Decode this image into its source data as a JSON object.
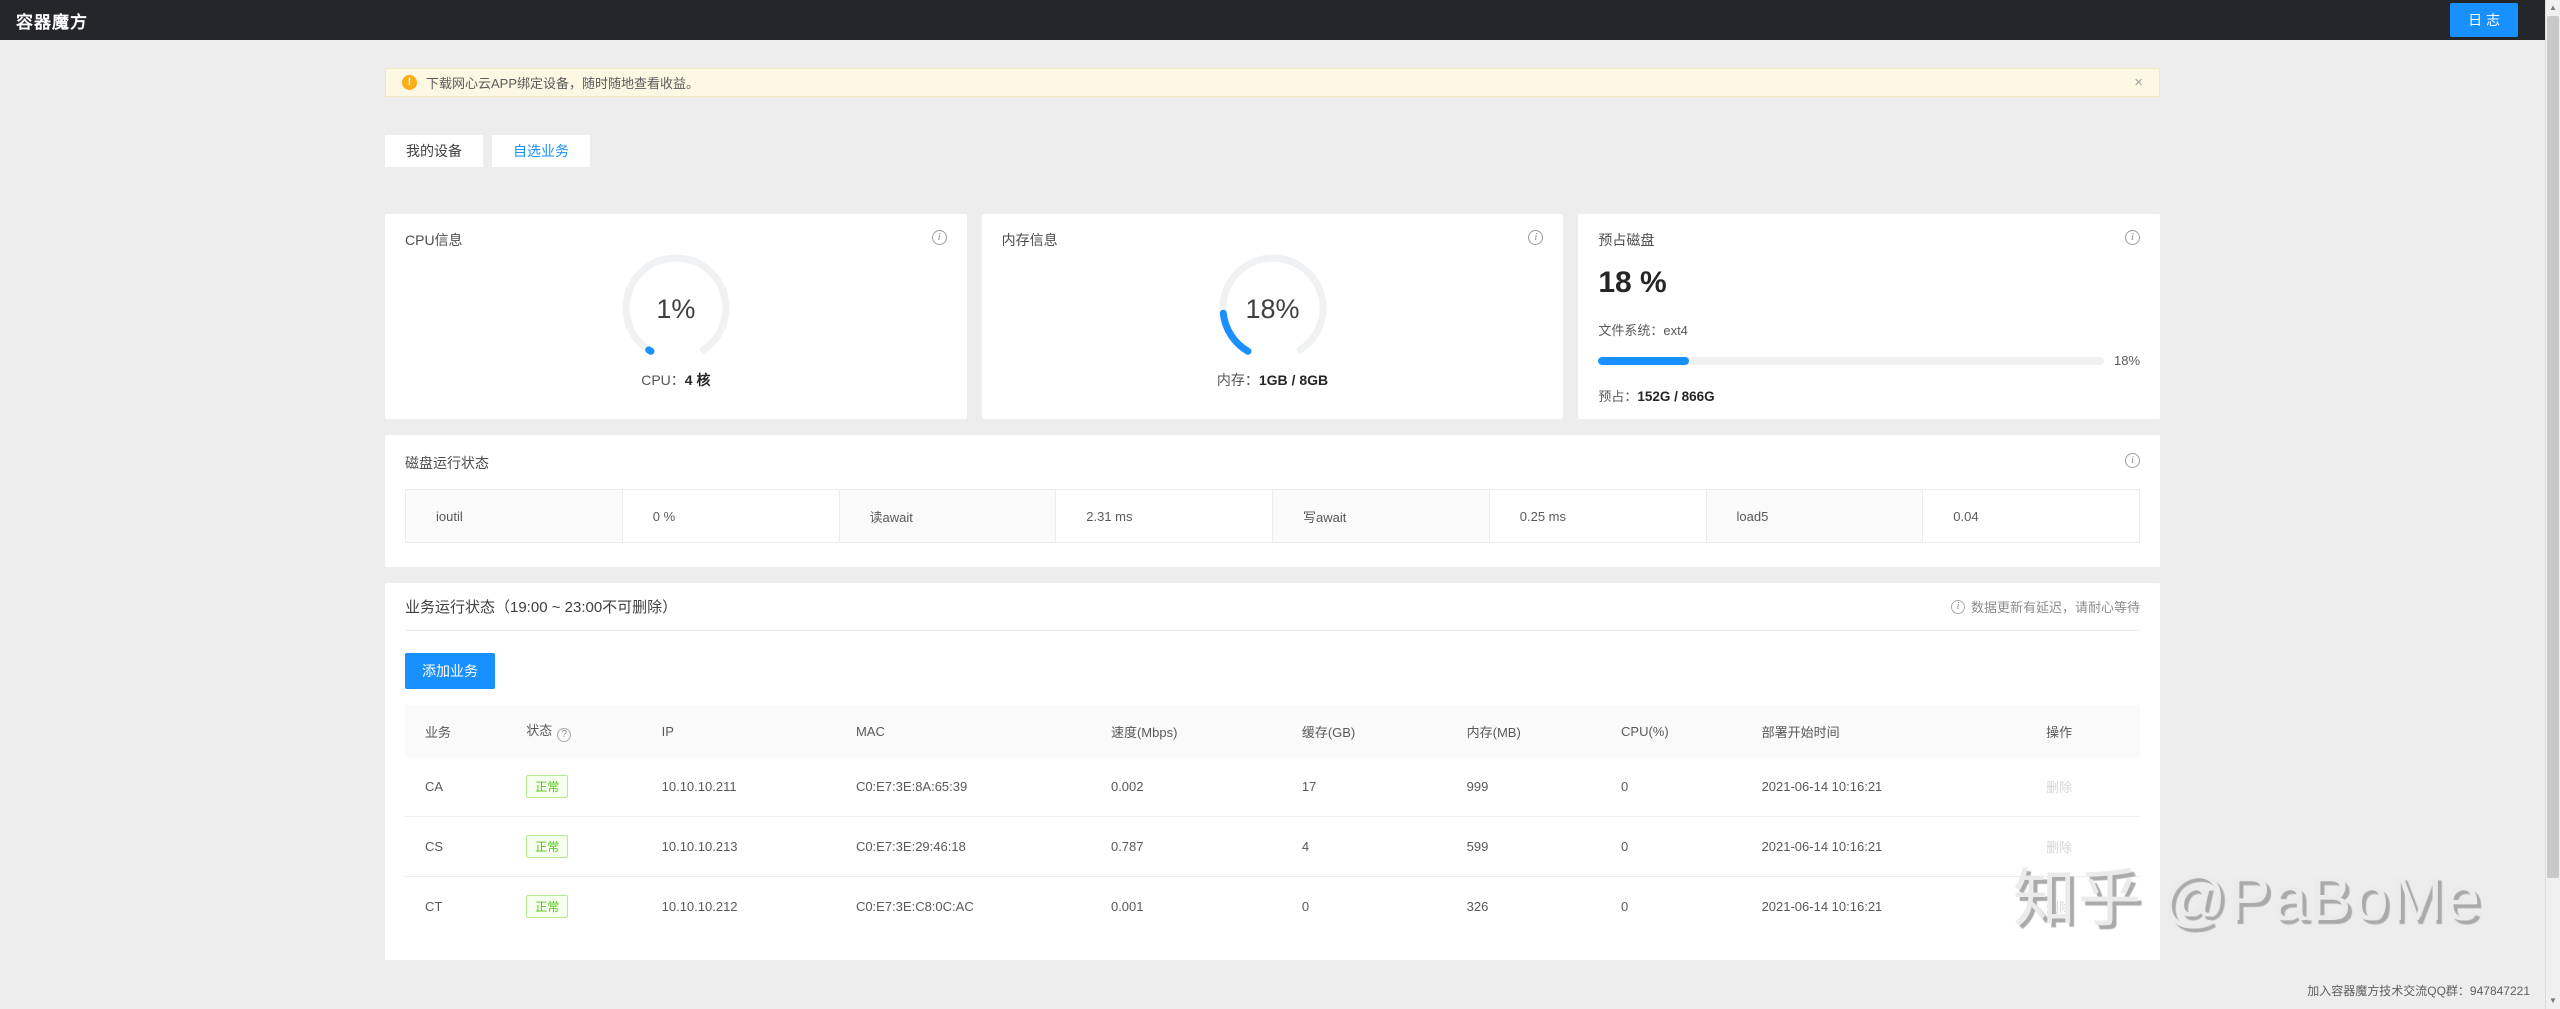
{
  "header": {
    "title": "容器魔方",
    "log_button": "日 志"
  },
  "icons": {
    "warning": "!",
    "close": "×",
    "info": "i",
    "help": "?",
    "scroll_up": "▲",
    "scroll_down": "▼"
  },
  "banner": {
    "text": "下载网心云APP绑定设备，随时随地查看收益。"
  },
  "tabs": [
    {
      "label": "我的设备",
      "active": false
    },
    {
      "label": "自选业务",
      "active": true
    }
  ],
  "cards": {
    "cpu": {
      "title": "CPU信息",
      "percent": "1%",
      "value": 1,
      "label_prefix": "CPU：",
      "label_value": "4 核"
    },
    "memory": {
      "title": "内存信息",
      "percent": "18%",
      "value": 18,
      "label_prefix": "内存：",
      "label_value": "1GB / 8GB"
    },
    "disk": {
      "title": "预占磁盘",
      "big_percent": "18 %",
      "filesystem": "文件系统：ext4",
      "bar_percent": 18,
      "bar_label": "18%",
      "usage_prefix": "预占：",
      "usage_value": "152G / 866G"
    }
  },
  "disk_status": {
    "title": "磁盘运行状态",
    "cells": [
      {
        "label": "ioutil",
        "value": "0 %"
      },
      {
        "label": "读await",
        "value": "2.31 ms"
      },
      {
        "label": "写await",
        "value": "0.25 ms"
      },
      {
        "label": "load5",
        "value": "0.04"
      }
    ]
  },
  "business": {
    "title": "业务运行状态（19:00 ~ 23:00不可删除）",
    "note": "数据更新有延迟，请耐心等待",
    "add_button": "添加业务",
    "table": {
      "headers": [
        "业务",
        "状态",
        "IP",
        "MAC",
        "速度(Mbps)",
        "缓存(GB)",
        "内存(MB)",
        "CPU(%)",
        "部署开始时间",
        "操作"
      ],
      "keys": [
        "name",
        "status",
        "ip",
        "mac",
        "speed",
        "cache",
        "memory",
        "cpu",
        "deploy_time",
        "action"
      ],
      "rows": [
        {
          "name": "CA",
          "status": "正常",
          "ip": "10.10.10.211",
          "mac": "C0:E7:3E:8A:65:39",
          "speed": "0.002",
          "cache": "17",
          "memory": "999",
          "cpu": "0",
          "deploy_time": "2021-06-14 10:16:21",
          "action": "删除"
        },
        {
          "name": "CS",
          "status": "正常",
          "ip": "10.10.10.213",
          "mac": "C0:E7:3E:29:46:18",
          "speed": "0.787",
          "cache": "4",
          "memory": "599",
          "cpu": "0",
          "deploy_time": "2021-06-14 10:16:21",
          "action": "删除"
        },
        {
          "name": "CT",
          "status": "正常",
          "ip": "10.10.10.212",
          "mac": "C0:E7:3E:C8:0C:AC",
          "speed": "0.001",
          "cache": "0",
          "memory": "326",
          "cpu": "0",
          "deploy_time": "2021-06-14 10:16:21",
          "action": "删除"
        }
      ]
    }
  },
  "watermark": "知乎 @PaBoMe",
  "footer": "加入容器魔方技术交流QQ群：947847221",
  "colors": {
    "accent": "#1890ff",
    "success": "#52c41a",
    "warning": "#faad14",
    "header_bg": "#24262a"
  }
}
